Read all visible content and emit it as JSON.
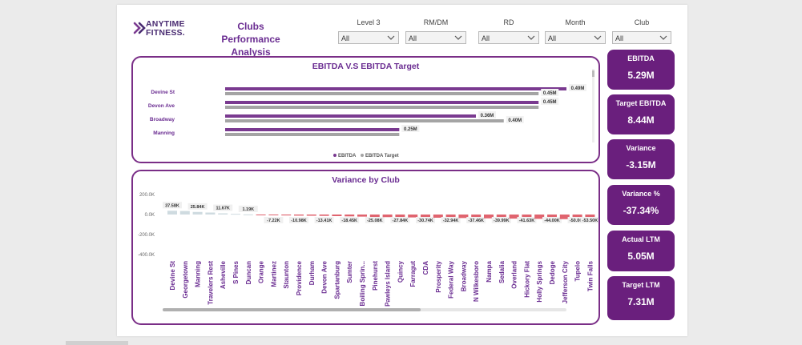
{
  "header": {
    "logo_text_line1": "ANYTIME",
    "logo_text_line2": "FITNESS.",
    "title_line1": "Clubs Performance",
    "title_line2": "Analysis"
  },
  "filters": [
    {
      "label": "Level 3",
      "value": "All"
    },
    {
      "label": "RM/DM",
      "value": "All"
    },
    {
      "label": "RD",
      "value": "All"
    },
    {
      "label": "Month",
      "value": "All"
    },
    {
      "label": "Club",
      "value": "All"
    }
  ],
  "kpis": [
    {
      "label": "EBITDA",
      "value": "5.29M"
    },
    {
      "label": "Target EBITDA",
      "value": "8.44M"
    },
    {
      "label": "Variance",
      "value": "-3.15M"
    },
    {
      "label": "Variance %",
      "value": "-37.34%"
    },
    {
      "label": "Actual LTM",
      "value": "5.05M"
    },
    {
      "label": "Target LTM",
      "value": "7.31M"
    }
  ],
  "colors": {
    "purple": "#7a3a90",
    "gray": "#a4a4a4",
    "positive": "#cfdbe0",
    "negative": "#e0646f",
    "kpi_bg": "#6a1f7d"
  },
  "chart_data": [
    {
      "type": "bar",
      "orientation": "horizontal",
      "title": "EBITDA V.S EBITDA Target",
      "categories": [
        "Devine St",
        "Devon Ave",
        "Broadway",
        "Manning"
      ],
      "series": [
        {
          "name": "EBITDA",
          "values": [
            0.49,
            0.45,
            0.36,
            0.25
          ],
          "labels": [
            "0.49M",
            "0.45M",
            "0.36M",
            "0.25M"
          ]
        },
        {
          "name": "EBITDA Target",
          "values": [
            0.45,
            0.45,
            0.4,
            0.25
          ],
          "labels": [
            "0.45M",
            "",
            "0.40M",
            ""
          ]
        }
      ],
      "legend": "bottom",
      "xlim": [
        0,
        0.49
      ]
    },
    {
      "type": "bar",
      "title": "Variance by Club",
      "categories": [
        "Devine St",
        "Georgetown",
        "Manning",
        "Travelers Rest",
        "Asheville",
        "S Pines",
        "Duncan",
        "Orange",
        "Martinez",
        "Staunton",
        "Providence",
        "Durham",
        "Devon Ave",
        "Spartanburg",
        "Sumter",
        "Boiling Sprin...",
        "Pinehurst",
        "Pawleys Island",
        "Quincy",
        "Farragut",
        "CDA",
        "Prosperity",
        "Federal Way",
        "Broadway",
        "N Wilkesboro",
        "Nampa",
        "Sedalia",
        "Overland",
        "Hickory Flat",
        "Holly Springs",
        "Dedoge",
        "Jefferson City",
        "Tupelo",
        "Twin Falls"
      ],
      "values": [
        37.58,
        35,
        25.84,
        20,
        11.67,
        7,
        1.19,
        -2,
        -7.22,
        -9,
        -10.98,
        -12,
        -13.41,
        -16,
        -18.45,
        -21,
        -25.08,
        -26,
        -27.84,
        -29,
        -30.74,
        -32,
        -32.94,
        -35,
        -37.46,
        -38,
        -39.99,
        -41,
        -41.63,
        -43,
        -44.0,
        -46,
        -50.0,
        -53.5
      ],
      "labels": [
        "37.58K",
        "",
        "25.84K",
        "",
        "11.67K",
        "",
        "1.19K",
        "",
        "-7.22K",
        "",
        "-10.98K",
        "",
        "-13.41K",
        "",
        "-18.45K",
        "",
        "-25.08K",
        "",
        "-27.84K",
        "",
        "-30.74K",
        "",
        "-32.94K",
        "",
        "-37.46K",
        "",
        "-39.99K",
        "",
        "-41.63K",
        "",
        "-44.00K",
        "",
        "-50.00K",
        "-53.50K"
      ],
      "yticks": [
        "200.0K",
        "0.0K",
        "-200.0K",
        "-400.0K"
      ],
      "ylim": [
        -400,
        200
      ]
    }
  ]
}
